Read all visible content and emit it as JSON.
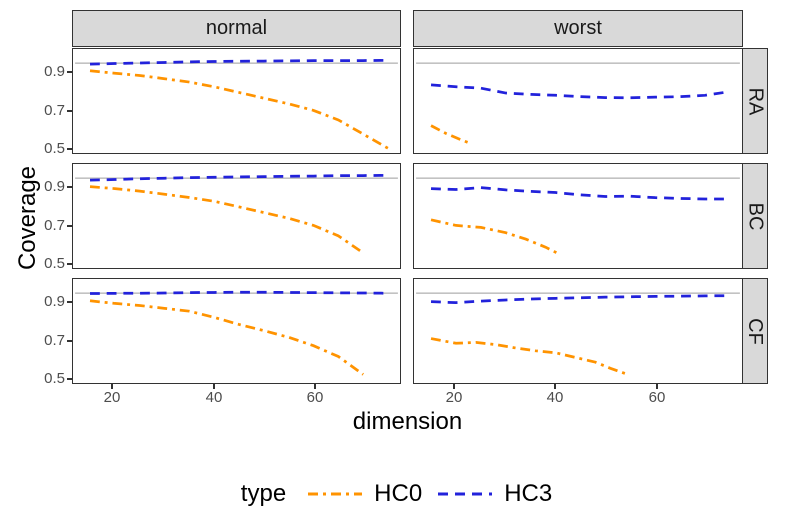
{
  "figure": {
    "colors": {
      "hc0": "#FF9300",
      "hc3": "#2222DB",
      "reference_line": "#C2C2C2",
      "strip_bg": "#D9D9D9",
      "panel_border": "#333333",
      "axis_text": "#4D4D4D",
      "title_text": "#000000"
    }
  },
  "axes": {
    "x_title": "dimension",
    "y_title": "Coverage",
    "x_ticks": [
      20,
      40,
      60
    ],
    "y_ticks": [
      "0.9",
      "0.7",
      "0.5"
    ],
    "y_tick_values": [
      0.9,
      0.7,
      0.5
    ],
    "x_domain": [
      12,
      77
    ],
    "y_domain": [
      0.475,
      1.025
    ]
  },
  "facets": {
    "cols": [
      {
        "label": "normal"
      },
      {
        "label": "worst"
      }
    ],
    "rows": [
      {
        "label": "RA"
      },
      {
        "label": "BC"
      },
      {
        "label": "CF"
      }
    ]
  },
  "legend": {
    "title": "type",
    "items": [
      {
        "label": "HC0",
        "color": "#FF9300",
        "dash": "dashdot"
      },
      {
        "label": "HC3",
        "color": "#2222DB",
        "dash": "dash"
      }
    ]
  },
  "chart_data": {
    "type": "line",
    "title": "",
    "xlabel": "dimension",
    "ylabel": "Coverage",
    "reference_line_y": 0.95,
    "xlim": [
      12,
      77
    ],
    "ylim": [
      0.475,
      1.025
    ],
    "legend_position": "bottom",
    "grid": false,
    "panels": [
      {
        "col": "normal",
        "row": "RA",
        "series": [
          {
            "name": "HC0",
            "x": [
              15,
              20,
              25,
              30,
              35,
              40,
              45,
              50,
              55,
              60,
              65,
              70,
              75
            ],
            "y": [
              0.91,
              0.897,
              0.885,
              0.868,
              0.85,
              0.825,
              0.795,
              0.765,
              0.735,
              0.7,
              0.65,
              0.575,
              0.5
            ]
          },
          {
            "name": "HC3",
            "x": [
              15,
              20,
              25,
              30,
              35,
              40,
              45,
              50,
              55,
              60,
              65,
              70,
              75
            ],
            "y": [
              0.945,
              0.948,
              0.951,
              0.954,
              0.957,
              0.959,
              0.96,
              0.961,
              0.962,
              0.963,
              0.963,
              0.964,
              0.965
            ]
          }
        ]
      },
      {
        "col": "worst",
        "row": "RA",
        "series": [
          {
            "name": "HC0",
            "x": [
              15,
              18,
              21,
              23
            ],
            "y": [
              0.62,
              0.578,
              0.545,
              0.525
            ]
          },
          {
            "name": "HC3",
            "x": [
              15,
              20,
              25,
              30,
              35,
              40,
              45,
              50,
              55,
              60,
              65,
              70,
              75
            ],
            "y": [
              0.835,
              0.825,
              0.818,
              0.792,
              0.785,
              0.78,
              0.773,
              0.768,
              0.767,
              0.77,
              0.773,
              0.78,
              0.8
            ]
          }
        ]
      },
      {
        "col": "normal",
        "row": "BC",
        "series": [
          {
            "name": "HC0",
            "x": [
              15,
              20,
              25,
              30,
              35,
              40,
              45,
              50,
              55,
              60,
              65,
              70
            ],
            "y": [
              0.905,
              0.895,
              0.882,
              0.865,
              0.848,
              0.828,
              0.798,
              0.768,
              0.738,
              0.7,
              0.645,
              0.555
            ]
          },
          {
            "name": "HC3",
            "x": [
              15,
              20,
              25,
              30,
              35,
              40,
              45,
              50,
              55,
              60,
              65,
              70,
              75
            ],
            "y": [
              0.94,
              0.943,
              0.947,
              0.95,
              0.953,
              0.955,
              0.957,
              0.958,
              0.96,
              0.961,
              0.963,
              0.964,
              0.965
            ]
          }
        ]
      },
      {
        "col": "worst",
        "row": "BC",
        "series": [
          {
            "name": "HC0",
            "x": [
              15,
              20,
              25,
              30,
              34,
              38,
              41
            ],
            "y": [
              0.73,
              0.7,
              0.69,
              0.662,
              0.628,
              0.585,
              0.545
            ]
          },
          {
            "name": "HC3",
            "x": [
              15,
              20,
              25,
              30,
              35,
              40,
              45,
              50,
              55,
              60,
              65,
              70,
              75
            ],
            "y": [
              0.895,
              0.89,
              0.9,
              0.888,
              0.88,
              0.874,
              0.862,
              0.853,
              0.855,
              0.847,
              0.843,
              0.84,
              0.84
            ]
          }
        ]
      },
      {
        "col": "normal",
        "row": "CF",
        "series": [
          {
            "name": "HC0",
            "x": [
              15,
              20,
              25,
              30,
              35,
              40,
              45,
              50,
              55,
              60,
              65,
              70
            ],
            "y": [
              0.91,
              0.896,
              0.885,
              0.87,
              0.855,
              0.822,
              0.785,
              0.752,
              0.717,
              0.672,
              0.615,
              0.52
            ]
          },
          {
            "name": "HC3",
            "x": [
              15,
              20,
              25,
              30,
              35,
              40,
              45,
              50,
              55,
              60,
              65,
              70,
              75
            ],
            "y": [
              0.948,
              0.949,
              0.95,
              0.951,
              0.953,
              0.954,
              0.955,
              0.955,
              0.954,
              0.953,
              0.952,
              0.951,
              0.95
            ]
          }
        ]
      },
      {
        "col": "worst",
        "row": "CF",
        "series": [
          {
            "name": "HC0",
            "x": [
              15,
              20,
              24,
              28,
              32,
              36,
              40,
              44,
              48,
              51,
              54
            ],
            "y": [
              0.71,
              0.685,
              0.69,
              0.678,
              0.66,
              0.645,
              0.635,
              0.61,
              0.585,
              0.553,
              0.525
            ]
          },
          {
            "name": "HC3",
            "x": [
              15,
              20,
              25,
              30,
              35,
              40,
              45,
              50,
              55,
              60,
              65,
              70,
              75
            ],
            "y": [
              0.905,
              0.9,
              0.908,
              0.914,
              0.919,
              0.923,
              0.926,
              0.929,
              0.931,
              0.933,
              0.934,
              0.936,
              0.937
            ]
          }
        ]
      }
    ]
  }
}
